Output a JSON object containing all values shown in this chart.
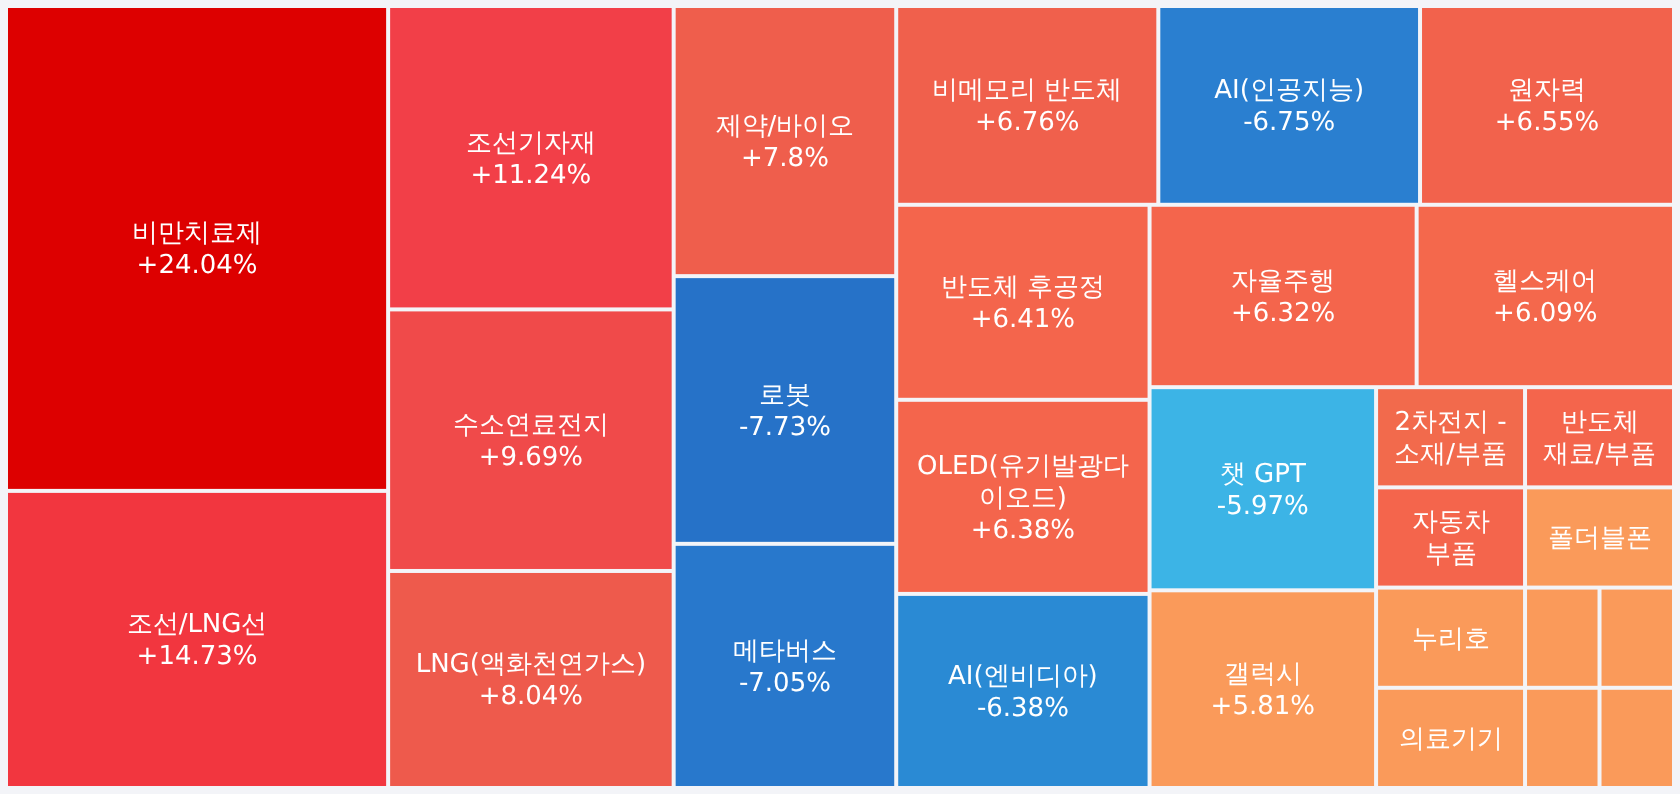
{
  "chart_data": {
    "type": "other",
    "categories": [
      "비만치료제",
      "조선/LNG선",
      "조선기자재",
      "수소연료전지",
      "LNG(액화천연가스)",
      "제약/바이오",
      "로봇",
      "메타버스",
      "비메모리 반도체",
      "AI(인공지능)",
      "원자력",
      "반도체 후공정",
      "OLED(유기발광다이오드)",
      "AI(엔비디아)",
      "자율주행",
      "헬스케어",
      "챗 GPT",
      "갤럭시",
      "2차전지 - 소재/부품",
      "반도체 재료/부품",
      "자동차 부품",
      "폴더블폰",
      "누리호",
      "의료기기",
      null,
      null,
      null,
      null
    ],
    "values": [
      24.04,
      14.73,
      11.24,
      9.69,
      8.04,
      7.8,
      -7.73,
      -7.05,
      6.76,
      -6.75,
      6.55,
      6.41,
      6.38,
      -6.38,
      6.32,
      6.09,
      -5.97,
      5.81,
      null,
      null,
      null,
      null,
      null,
      null,
      null,
      null,
      null,
      null
    ],
    "value_labels": [
      "+24.04%",
      "+14.73%",
      "+11.24%",
      "+9.69%",
      "+8.04%",
      "+7.8%",
      "-7.73%",
      "-7.05%",
      "+6.76%",
      "-6.75%",
      "+6.55%",
      "+6.41%",
      "+6.38%",
      "-6.38%",
      "+6.32%",
      "+6.09%",
      "-5.97%",
      "+5.81%",
      null,
      null,
      null,
      null,
      null,
      null,
      null,
      null,
      null,
      null
    ],
    "colors": [
      "#dd0000",
      "#f2363f",
      "#f23f48",
      "#f04a4a",
      "#ee5a4c",
      "#ef5e4c",
      "#2672c8",
      "#2878cc",
      "#f0604c",
      "#2a7fd0",
      "#f2624c",
      "#f4654c",
      "#f4654c",
      "#2a8ad4",
      "#f4654c",
      "#f4684c",
      "#3cb4e6",
      "#fa9a5a",
      "#f26a4c",
      "#f4654c",
      "#f4654c",
      "#fa9a5a",
      "#fa9a5a",
      "#fa9a5a",
      "#fa9a5a",
      "#fa9a5a",
      "#fa9a5a",
      "#fa9a5a"
    ]
  }
}
